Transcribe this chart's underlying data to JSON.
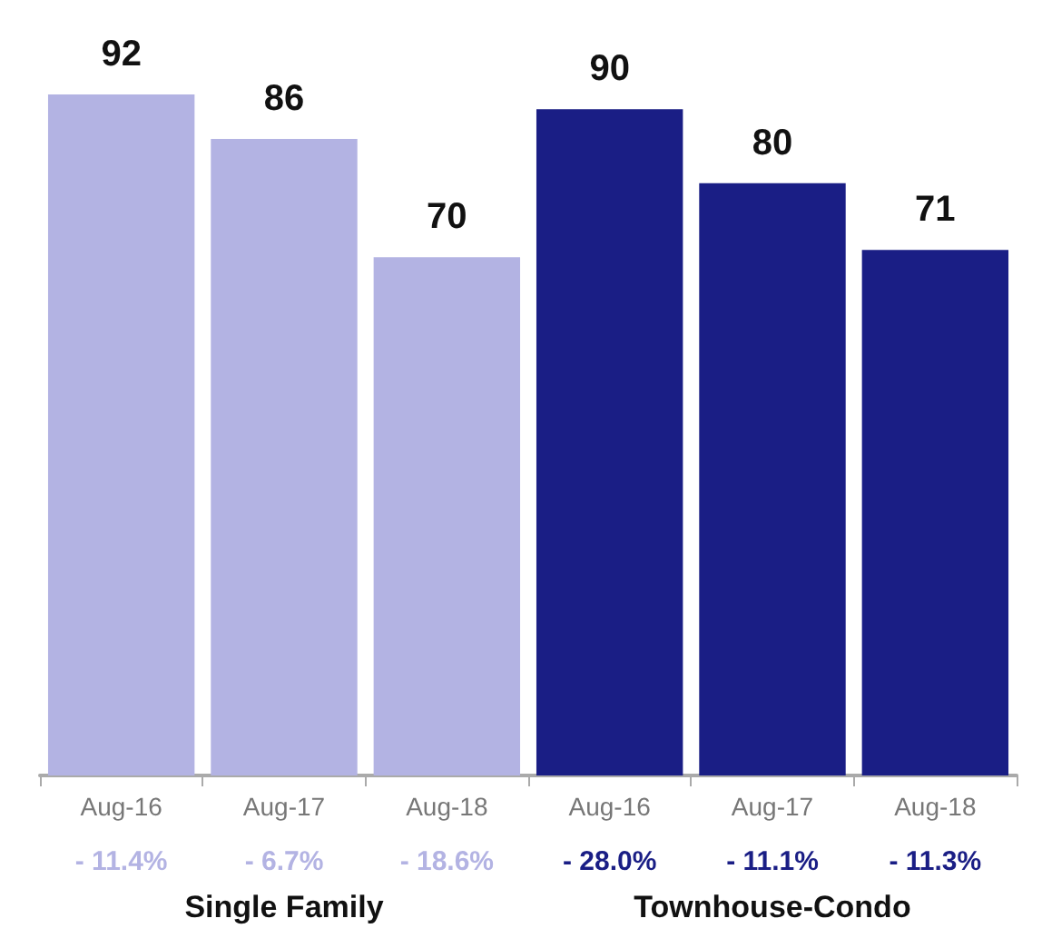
{
  "chart_data": {
    "type": "bar",
    "categories": [
      "Aug-16",
      "Aug-17",
      "Aug-18",
      "Aug-16",
      "Aug-17",
      "Aug-18"
    ],
    "values": [
      92,
      86,
      70,
      90,
      80,
      71
    ],
    "colors": [
      "#b3b3e3",
      "#b3b3e3",
      "#b3b3e3",
      "#1a1e85",
      "#1a1e85",
      "#1a1e85"
    ],
    "data_labels": true,
    "annotations": [
      "- 11.4%",
      "- 6.7%",
      "- 18.6%",
      "- 28.0%",
      "- 11.1%",
      "- 11.3%",
      "Single Family",
      "Townhouse-Condo"
    ]
  }
}
